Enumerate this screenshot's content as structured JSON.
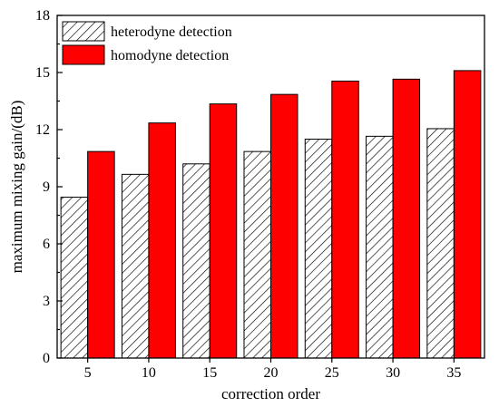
{
  "chart_data": {
    "type": "bar",
    "title": "",
    "xlabel": "correction order",
    "ylabel": "maximum mixing gain/(dB)",
    "categories": [
      "5",
      "10",
      "15",
      "20",
      "25",
      "30",
      "35"
    ],
    "ylim": [
      0,
      18
    ],
    "yticks": [
      "0",
      "3",
      "6",
      "9",
      "12",
      "15",
      "18"
    ],
    "grid": false,
    "legend_position": "top-left",
    "series": [
      {
        "name": "heterodyne detection",
        "values": [
          8.45,
          9.65,
          10.2,
          10.85,
          11.5,
          11.65,
          12.05
        ],
        "color": "#ffffff",
        "pattern": "diagonal-hatch"
      },
      {
        "name": "homodyne detection",
        "values": [
          10.85,
          12.35,
          13.35,
          13.85,
          14.55,
          14.65,
          15.1
        ],
        "color": "#ff0000",
        "pattern": "solid"
      }
    ]
  }
}
